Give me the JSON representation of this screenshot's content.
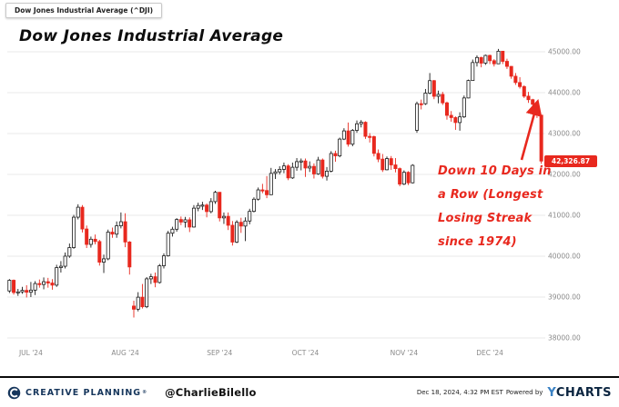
{
  "window": {
    "chip_label": "Dow Jones Industrial Average (^DJI)"
  },
  "title": "Dow Jones Industrial Average",
  "annotation": {
    "full_text": "Down 10 Days in a Row (Longest Losing Streak since 1974)",
    "lines": [
      "Down 10 Days in",
      "a Row (Longest",
      "Losing Streak",
      "since 1974)"
    ]
  },
  "chart_data": {
    "type": "candlestick",
    "title": "Dow Jones Industrial Average",
    "symbol": "^DJI",
    "ylim": [
      38000,
      45000
    ],
    "y_ticks": [
      38000,
      39000,
      40000,
      41000,
      42000,
      43000,
      44000,
      45000
    ],
    "y_tick_labels": [
      "38000.00",
      "39000.00",
      "40000.00",
      "41000.00",
      "42000.00",
      "43000.00",
      "44000.00",
      "45000.00"
    ],
    "x_ticks": [
      {
        "label": "JUL '24",
        "index": 5
      },
      {
        "label": "AUG '24",
        "index": 27
      },
      {
        "label": "SEP '24",
        "index": 49
      },
      {
        "label": "OCT '24",
        "index": 69
      },
      {
        "label": "NOV '24",
        "index": 92
      },
      {
        "label": "DEC '24",
        "index": 112
      }
    ],
    "grid": true,
    "legend_position": "none",
    "last_price": 42326.87,
    "last_price_label": "42,326.87",
    "colors": {
      "up_fill": "#ffffff",
      "up_stroke": "#1a1a1a",
      "down": "#e8281e",
      "grid": "#e8e8e8",
      "axis_text": "#8a8a8a",
      "badge_bg": "#e8281e",
      "badge_text": "#ffffff",
      "annotation": "#e8281e"
    },
    "candles": [
      [
        "2024-06-24",
        39150,
        39440,
        39100,
        39411
      ],
      [
        "2024-06-25",
        39411,
        39430,
        39060,
        39112
      ],
      [
        "2024-06-26",
        39112,
        39200,
        39030,
        39128
      ],
      [
        "2024-06-27",
        39128,
        39250,
        39080,
        39164
      ],
      [
        "2024-06-28",
        39164,
        39290,
        38990,
        39119
      ],
      [
        "2024-07-01",
        39119,
        39370,
        39000,
        39170
      ],
      [
        "2024-07-02",
        39170,
        39390,
        39050,
        39331
      ],
      [
        "2024-07-03",
        39331,
        39430,
        39230,
        39308
      ],
      [
        "2024-07-05",
        39308,
        39480,
        39190,
        39376
      ],
      [
        "2024-07-08",
        39376,
        39470,
        39230,
        39344
      ],
      [
        "2024-07-09",
        39344,
        39440,
        39180,
        39292
      ],
      [
        "2024-07-10",
        39292,
        39790,
        39250,
        39721
      ],
      [
        "2024-07-11",
        39721,
        39880,
        39600,
        39754
      ],
      [
        "2024-07-12",
        39754,
        40090,
        39700,
        40001
      ],
      [
        "2024-07-15",
        40001,
        40310,
        39960,
        40211
      ],
      [
        "2024-07-16",
        40211,
        41010,
        40180,
        40954
      ],
      [
        "2024-07-17",
        40954,
        41270,
        40900,
        41198
      ],
      [
        "2024-07-18",
        41198,
        41250,
        40580,
        40665
      ],
      [
        "2024-07-19",
        40665,
        40750,
        40200,
        40288
      ],
      [
        "2024-07-22",
        40288,
        40480,
        40210,
        40415
      ],
      [
        "2024-07-23",
        40415,
        40530,
        40290,
        40358
      ],
      [
        "2024-07-24",
        40358,
        40400,
        39770,
        39854
      ],
      [
        "2024-07-25",
        39854,
        40040,
        39590,
        39935
      ],
      [
        "2024-07-26",
        39935,
        40650,
        39900,
        40589
      ],
      [
        "2024-07-29",
        40589,
        40700,
        40450,
        40540
      ],
      [
        "2024-07-30",
        40540,
        40850,
        40450,
        40743
      ],
      [
        "2024-07-31",
        40743,
        41070,
        40680,
        40843
      ],
      [
        "2024-08-01",
        40843,
        41050,
        40220,
        40347
      ],
      [
        "2024-08-02",
        40347,
        40370,
        39550,
        39737
      ],
      [
        "2024-08-05",
        38780,
        38910,
        38500,
        38703
      ],
      [
        "2024-08-06",
        38703,
        39120,
        38650,
        38997
      ],
      [
        "2024-08-07",
        38997,
        39320,
        38720,
        38763
      ],
      [
        "2024-08-08",
        38763,
        39490,
        38730,
        39446
      ],
      [
        "2024-08-09",
        39446,
        39570,
        39320,
        39498
      ],
      [
        "2024-08-12",
        39498,
        39600,
        39240,
        39357
      ],
      [
        "2024-08-13",
        39357,
        39810,
        39330,
        39766
      ],
      [
        "2024-08-14",
        39766,
        40070,
        39700,
        40008
      ],
      [
        "2024-08-15",
        40008,
        40620,
        39990,
        40563
      ],
      [
        "2024-08-16",
        40563,
        40720,
        40480,
        40660
      ],
      [
        "2024-08-19",
        40660,
        40930,
        40600,
        40897
      ],
      [
        "2024-08-20",
        40897,
        40970,
        40760,
        40835
      ],
      [
        "2024-08-21",
        40835,
        40960,
        40700,
        40890
      ],
      [
        "2024-08-22",
        40890,
        40950,
        40590,
        40713
      ],
      [
        "2024-08-23",
        40713,
        41250,
        40700,
        41175
      ],
      [
        "2024-08-26",
        41175,
        41310,
        41100,
        41240
      ],
      [
        "2024-08-27",
        41240,
        41330,
        41130,
        41250
      ],
      [
        "2024-08-28",
        41250,
        41290,
        40950,
        41091
      ],
      [
        "2024-08-29",
        41091,
        41420,
        41050,
        41335
      ],
      [
        "2024-08-30",
        41335,
        41600,
        41280,
        41563
      ],
      [
        "2024-09-03",
        41563,
        41570,
        40850,
        40937
      ],
      [
        "2024-09-04",
        40937,
        41070,
        40790,
        40974
      ],
      [
        "2024-09-05",
        40974,
        41070,
        40640,
        40756
      ],
      [
        "2024-09-06",
        40756,
        40860,
        40260,
        40345
      ],
      [
        "2024-09-09",
        40345,
        40880,
        40320,
        40830
      ],
      [
        "2024-09-10",
        40830,
        40940,
        40570,
        40737
      ],
      [
        "2024-09-11",
        40737,
        40950,
        40370,
        40861
      ],
      [
        "2024-09-12",
        40861,
        41160,
        40780,
        41097
      ],
      [
        "2024-09-13",
        41097,
        41440,
        41070,
        41394
      ],
      [
        "2024-09-16",
        41394,
        41680,
        41360,
        41622
      ],
      [
        "2024-09-17",
        41622,
        41770,
        41540,
        41606
      ],
      [
        "2024-09-18",
        41606,
        41960,
        41420,
        41503
      ],
      [
        "2024-09-19",
        41503,
        42160,
        41500,
        42025
      ],
      [
        "2024-09-20",
        42025,
        42130,
        41890,
        42063
      ],
      [
        "2024-09-23",
        42063,
        42200,
        42000,
        42124
      ],
      [
        "2024-09-24",
        42124,
        42290,
        42030,
        42208
      ],
      [
        "2024-09-25",
        42208,
        42250,
        41860,
        41915
      ],
      [
        "2024-09-26",
        41915,
        42290,
        41890,
        42175
      ],
      [
        "2024-09-27",
        42175,
        42400,
        42090,
        42313
      ],
      [
        "2024-09-30",
        42313,
        42390,
        42100,
        42330
      ],
      [
        "2024-10-01",
        42330,
        42390,
        41940,
        42157
      ],
      [
        "2024-10-02",
        42157,
        42320,
        42060,
        42197
      ],
      [
        "2024-10-03",
        42197,
        42270,
        41900,
        42012
      ],
      [
        "2024-10-04",
        42012,
        42430,
        41990,
        42353
      ],
      [
        "2024-10-07",
        42353,
        42390,
        41900,
        41954
      ],
      [
        "2024-10-08",
        41954,
        42180,
        41850,
        42080
      ],
      [
        "2024-10-09",
        42080,
        42570,
        42050,
        42512
      ],
      [
        "2024-10-10",
        42512,
        42580,
        42310,
        42454
      ],
      [
        "2024-10-11",
        42454,
        42900,
        42420,
        42864
      ],
      [
        "2024-10-14",
        42864,
        43130,
        42840,
        43065
      ],
      [
        "2024-10-15",
        43065,
        43270,
        42680,
        42740
      ],
      [
        "2024-10-16",
        42740,
        43110,
        42690,
        43078
      ],
      [
        "2024-10-17",
        43078,
        43320,
        43020,
        43239
      ],
      [
        "2024-10-18",
        43239,
        43330,
        43150,
        43276
      ],
      [
        "2024-10-21",
        43276,
        43300,
        42870,
        42931
      ],
      [
        "2024-10-22",
        42931,
        43010,
        42780,
        42924
      ],
      [
        "2024-10-23",
        42924,
        42950,
        42440,
        42515
      ],
      [
        "2024-10-24",
        42515,
        42610,
        42300,
        42374
      ],
      [
        "2024-10-25",
        42374,
        42500,
        42060,
        42114
      ],
      [
        "2024-10-28",
        42114,
        42440,
        42100,
        42387
      ],
      [
        "2024-10-29",
        42387,
        42450,
        42110,
        42233
      ],
      [
        "2024-10-30",
        42233,
        42400,
        42050,
        42142
      ],
      [
        "2024-10-31",
        42142,
        42170,
        41710,
        41763
      ],
      [
        "2024-11-01",
        41763,
        42100,
        41740,
        42052
      ],
      [
        "2024-11-04",
        42052,
        42080,
        41740,
        41795
      ],
      [
        "2024-11-05",
        41795,
        42250,
        41780,
        42222
      ],
      [
        "2024-11-06",
        43080,
        43780,
        43020,
        43730
      ],
      [
        "2024-11-07",
        43730,
        43830,
        43590,
        43729
      ],
      [
        "2024-11-08",
        43729,
        44090,
        43700,
        43989
      ],
      [
        "2024-11-11",
        43989,
        44480,
        43960,
        44294
      ],
      [
        "2024-11-12",
        44294,
        44310,
        43840,
        43911
      ],
      [
        "2024-11-13",
        43911,
        44050,
        43740,
        43958
      ],
      [
        "2024-11-14",
        43958,
        44020,
        43700,
        43751
      ],
      [
        "2024-11-15",
        43751,
        43780,
        43340,
        43445
      ],
      [
        "2024-11-18",
        43445,
        43550,
        43290,
        43390
      ],
      [
        "2024-11-19",
        43390,
        43420,
        43090,
        43269
      ],
      [
        "2024-11-20",
        43269,
        43520,
        43070,
        43408
      ],
      [
        "2024-11-21",
        43408,
        43930,
        43380,
        43870
      ],
      [
        "2024-11-22",
        43870,
        44320,
        43860,
        44297
      ],
      [
        "2024-11-25",
        44297,
        44810,
        44290,
        44737
      ],
      [
        "2024-11-26",
        44737,
        44910,
        44640,
        44860
      ],
      [
        "2024-11-27",
        44860,
        44880,
        44620,
        44722
      ],
      [
        "2024-11-29",
        44722,
        44930,
        44680,
        44911
      ],
      [
        "2024-12-02",
        44911,
        44930,
        44700,
        44782
      ],
      [
        "2024-12-03",
        44782,
        44820,
        44640,
        44706
      ],
      [
        "2024-12-04",
        44706,
        45070,
        44700,
        45014
      ],
      [
        "2024-12-05",
        45014,
        45020,
        44700,
        44766
      ],
      [
        "2024-12-06",
        44766,
        44830,
        44580,
        44643
      ],
      [
        "2024-12-09",
        44643,
        44650,
        44340,
        44402
      ],
      [
        "2024-12-10",
        44402,
        44480,
        44190,
        44248
      ],
      [
        "2024-12-11",
        44248,
        44380,
        44100,
        44149
      ],
      [
        "2024-12-12",
        44149,
        44180,
        43870,
        43914
      ],
      [
        "2024-12-13",
        43914,
        44020,
        43750,
        43828
      ],
      [
        "2024-12-16",
        43828,
        43850,
        43600,
        43717
      ],
      [
        "2024-12-17",
        43717,
        43750,
        43380,
        43450
      ],
      [
        "2024-12-18",
        43450,
        43460,
        42260,
        42327
      ]
    ]
  },
  "footer": {
    "brand": "CREATIVE PLANNING",
    "brand_reg": "®",
    "handle": "@CharlieBilello",
    "timestamp": "Dec 18, 2024, 4:32 PM EST",
    "powered_by": "Powered by",
    "ycharts_y": "Y",
    "ycharts_rest": "CHARTS",
    "navy": "#16365c"
  }
}
